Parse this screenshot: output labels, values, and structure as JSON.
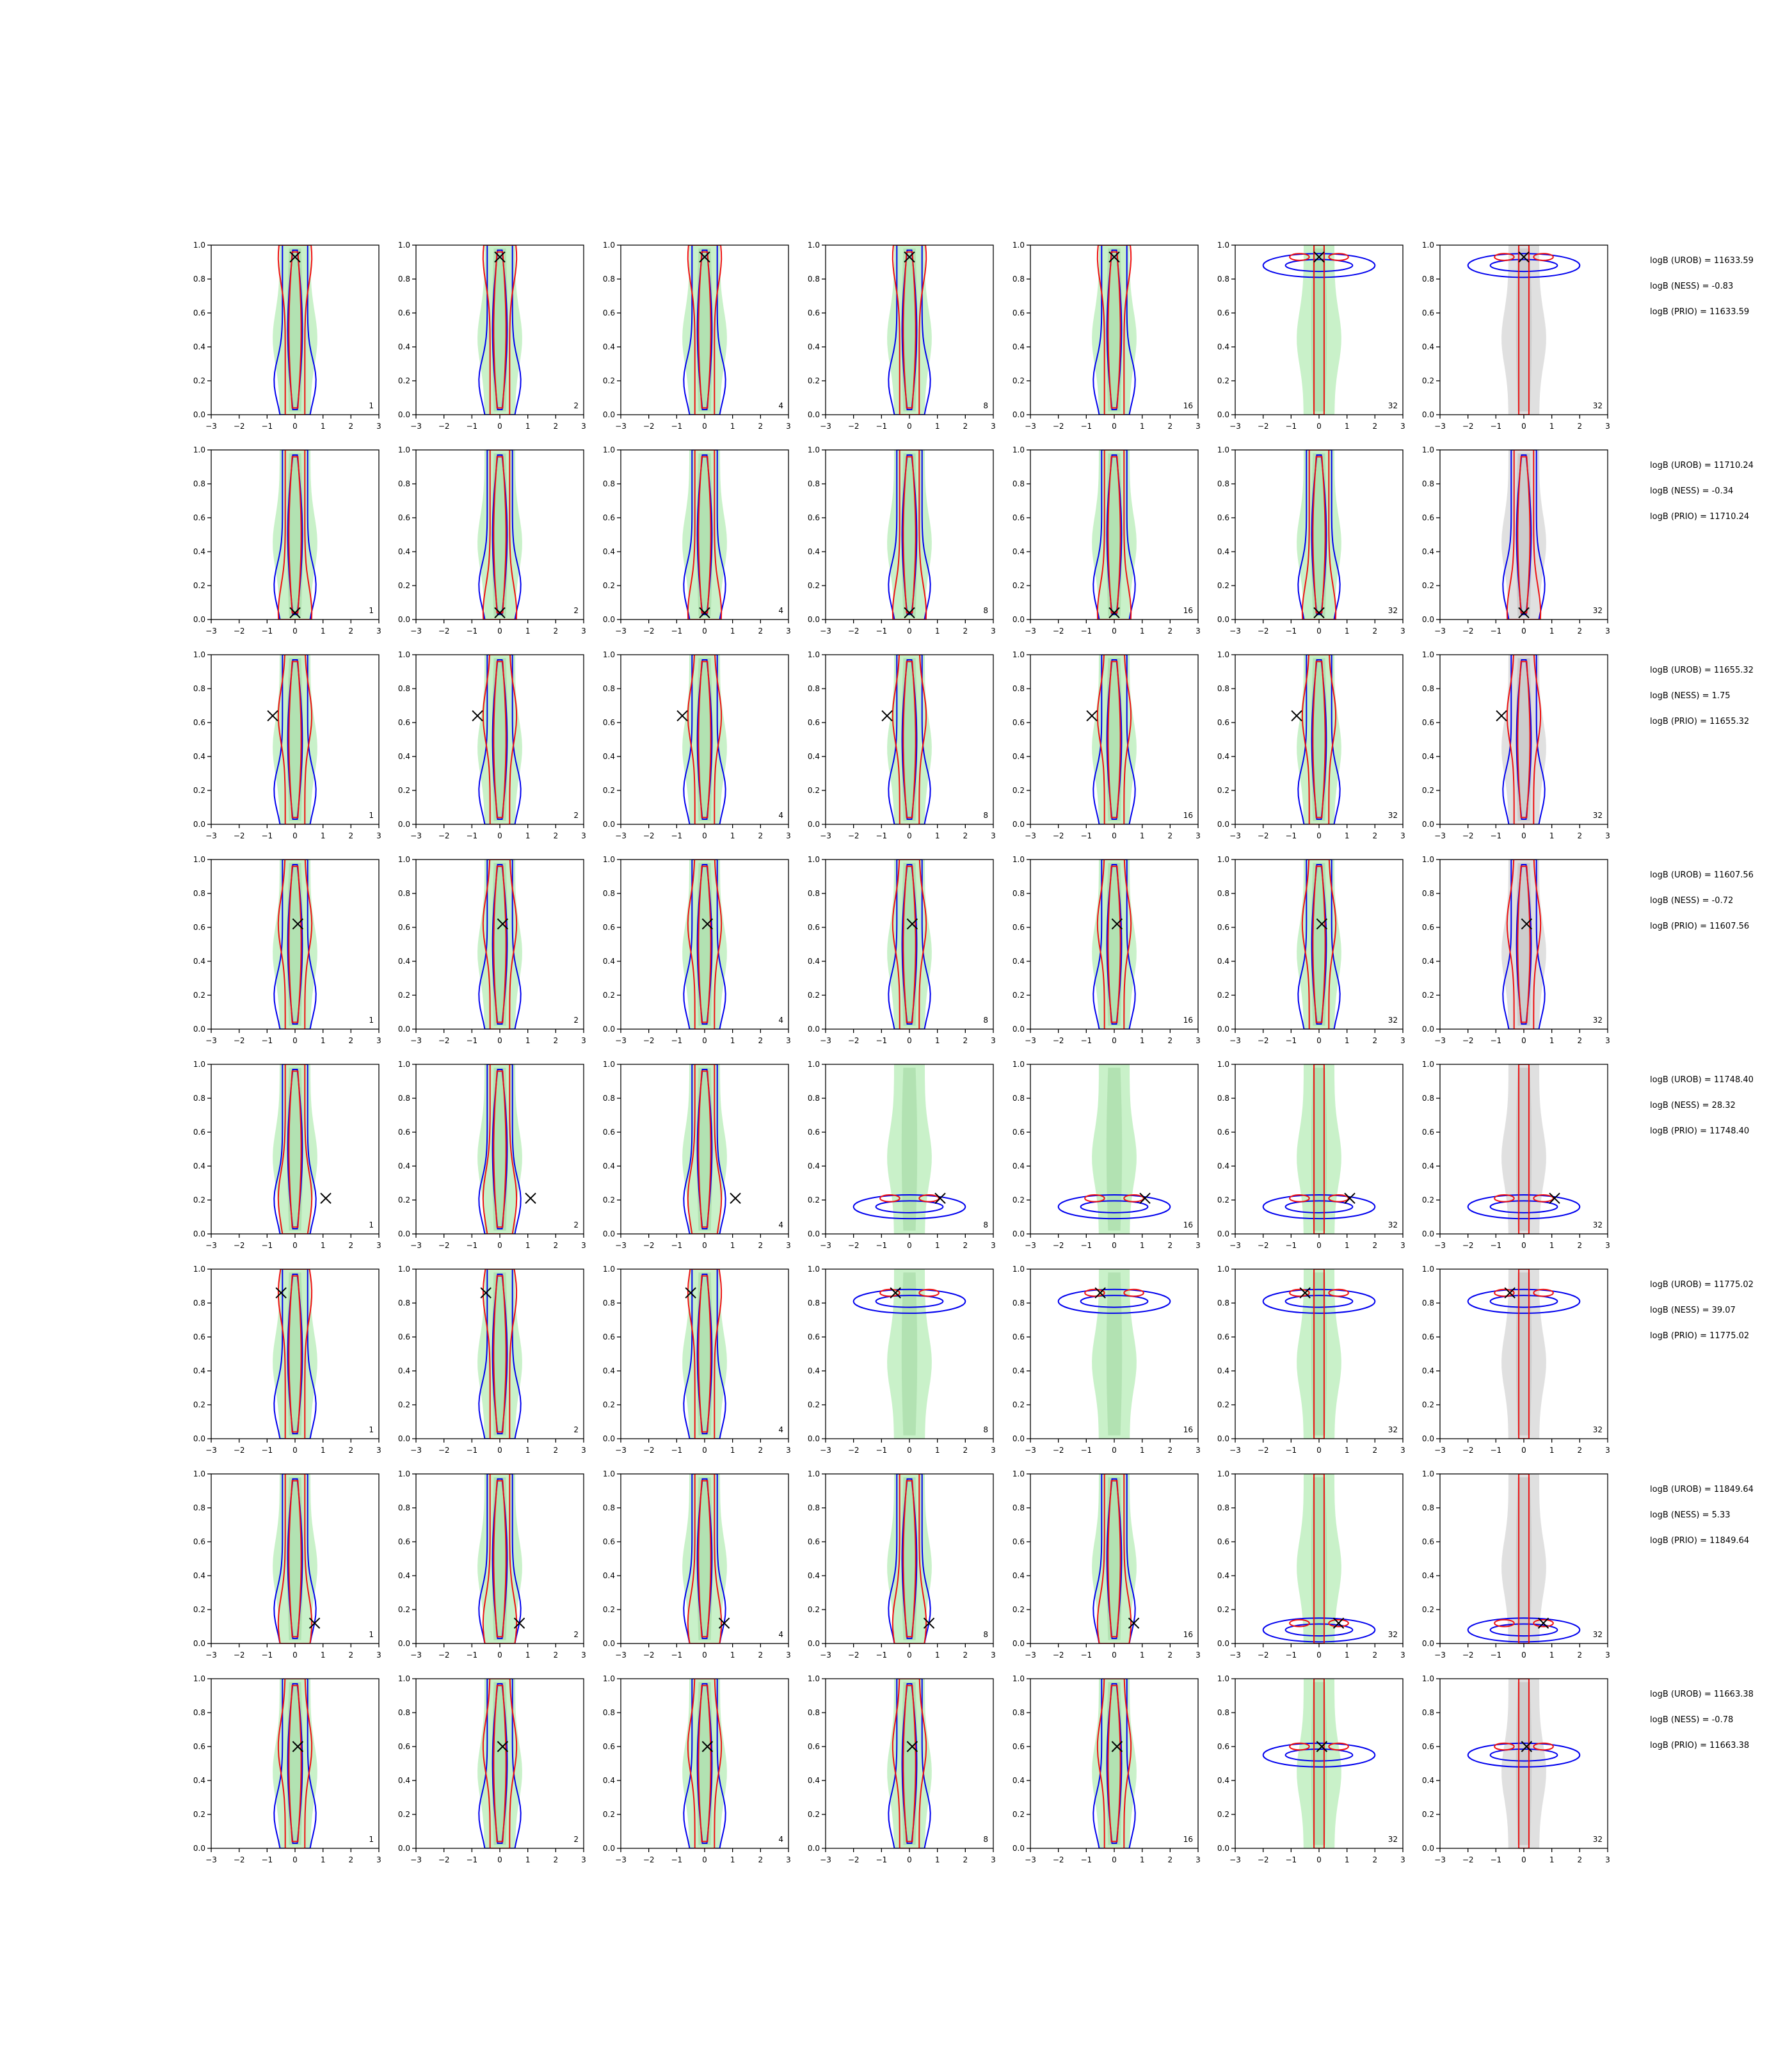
{
  "colors": {
    "green_fill": "#b7ecb7",
    "grey_fill": "#d6d6d6",
    "blue_contour": "#0000ee",
    "red_contour": "#ee1111",
    "marker": "#000000"
  },
  "axes": {
    "xlim": [
      -3,
      3
    ],
    "ylim": [
      0,
      1
    ],
    "xticks": [
      "−3",
      "−2",
      "−1",
      "0",
      "1",
      "2",
      "3"
    ],
    "yticks": [
      "0.0",
      "0.2",
      "0.4",
      "0.6",
      "0.8",
      "1.0"
    ]
  },
  "column_labels": [
    "1",
    "2",
    "4",
    "8",
    "16",
    "32",
    "32"
  ],
  "chart_data": {
    "type": "contour-grid",
    "rows": [
      {
        "marker": [
          0.0,
          0.93
        ],
        "logB": [
          "logB (UROB) = 11633.59",
          "logB (NESS) = -0.83",
          "logB (PRIO) = 11633.59"
        ]
      },
      {
        "marker": [
          0.0,
          0.04
        ],
        "logB": [
          "logB (UROB) = 11710.24",
          "logB (NESS) = -0.34",
          "logB (PRIO) = 11710.24"
        ]
      },
      {
        "marker": [
          -0.8,
          0.64
        ],
        "logB": [
          "logB (UROB) = 11655.32",
          "logB (NESS) = 1.75",
          "logB (PRIO) = 11655.32"
        ]
      },
      {
        "marker": [
          0.1,
          0.62
        ],
        "logB": [
          "logB (UROB) = 11607.56",
          "logB (NESS) = -0.72",
          "logB (PRIO) = 11607.56"
        ]
      },
      {
        "marker": [
          1.1,
          0.21
        ],
        "logB": [
          "logB (UROB) = 11748.40",
          "logB (NESS) = 28.32",
          "logB (PRIO) = 11748.40"
        ]
      },
      {
        "marker": [
          -0.5,
          0.86
        ],
        "logB": [
          "logB (UROB) = 11775.02",
          "logB (NESS) = 39.07",
          "logB (PRIO) = 11775.02"
        ]
      },
      {
        "marker": [
          0.7,
          0.12
        ],
        "logB": [
          "logB (UROB) = 11849.64",
          "logB (NESS) = 5.33",
          "logB (PRIO) = 11849.64"
        ]
      },
      {
        "marker": [
          0.1,
          0.6
        ],
        "logB": [
          "logB (UROB) = 11663.38",
          "logB (NESS) = -0.78",
          "logB (PRIO) = 11663.38"
        ]
      }
    ]
  }
}
